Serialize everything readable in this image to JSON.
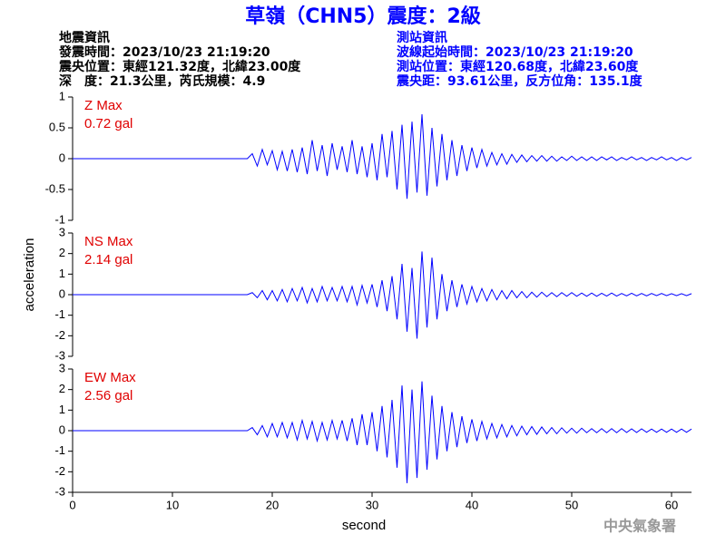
{
  "title": "草嶺（CHN5）震度：2級",
  "quake_info": [
    "地震資訊",
    "發震時間：2023/10/23 21:19:20",
    "震央位置：東經121.32度，北緯23.00度",
    "深　度：21.3公里，芮氏規模：4.9"
  ],
  "station_info": [
    "測站資訊",
    "波線起始時間：2023/10/23 21:19:20",
    "測站位置：東經120.68度，北緯23.60度",
    "震央距：93.61公里，反方位角：135.1度"
  ],
  "ylabel": "acceleration",
  "footer": "中央氣象署",
  "chart_data": [
    {
      "type": "line",
      "title": "Z Max",
      "subtitle": "0.72 gal",
      "x": [
        0,
        17.5,
        18,
        18.5,
        19,
        19.5,
        20,
        20.5,
        21,
        21.5,
        22,
        22.5,
        23,
        23.5,
        24,
        24.5,
        25,
        25.5,
        26,
        26.5,
        27,
        27.5,
        28,
        28.5,
        29,
        29.5,
        30,
        30.5,
        31,
        31.5,
        32,
        32.5,
        33,
        33.5,
        34,
        34.5,
        35,
        35.5,
        36,
        36.5,
        37,
        37.5,
        38,
        38.5,
        39,
        39.5,
        40,
        40.5,
        41,
        41.5,
        42,
        42.5,
        43,
        43.5,
        44,
        44.5,
        45,
        45.5,
        46,
        46.5,
        47,
        47.5,
        48,
        48.5,
        49,
        49.5,
        50,
        50.5,
        51,
        51.5,
        52,
        52.5,
        53,
        53.5,
        54,
        54.5,
        55,
        55.5,
        56,
        56.5,
        57,
        57.5,
        58,
        58.5,
        59,
        59.5,
        60,
        60.5,
        61,
        61.5,
        62
      ],
      "series": [
        {
          "color": "#0000ff",
          "values": [
            0,
            0,
            0.08,
            -0.12,
            0.15,
            -0.1,
            0.13,
            -0.18,
            0.12,
            -0.2,
            0.15,
            -0.22,
            0.18,
            -0.25,
            0.3,
            -0.2,
            0.22,
            -0.28,
            0.25,
            -0.18,
            0.2,
            -0.22,
            0.3,
            -0.25,
            0.2,
            -0.3,
            0.25,
            -0.35,
            0.4,
            -0.3,
            0.45,
            -0.5,
            0.55,
            -0.65,
            0.6,
            -0.55,
            0.72,
            -0.6,
            0.5,
            -0.45,
            0.4,
            -0.35,
            0.3,
            -0.28,
            0.22,
            -0.2,
            0.18,
            -0.15,
            0.15,
            -0.12,
            0.1,
            -0.1,
            0.08,
            -0.09,
            0.07,
            -0.06,
            0.06,
            -0.05,
            0.05,
            -0.04,
            0.05,
            -0.04,
            0.04,
            -0.04,
            0.03,
            -0.03,
            0.04,
            -0.03,
            0.03,
            -0.03,
            0.03,
            -0.03,
            0.03,
            -0.02,
            0.03,
            -0.03,
            0.02,
            -0.02,
            0.03,
            -0.02,
            0.02,
            -0.03,
            0.02,
            -0.02,
            0.03,
            -0.02,
            0.02,
            -0.03,
            0.02,
            -0.02,
            0.02
          ]
        }
      ],
      "xlim": [
        0,
        62
      ],
      "ylim": [
        -1,
        1
      ],
      "yticks": [
        -1,
        -0.5,
        0,
        0.5,
        1
      ]
    },
    {
      "type": "line",
      "title": "NS Max",
      "subtitle": "2.14 gal",
      "x": [
        0,
        17.5,
        18,
        18.5,
        19,
        19.5,
        20,
        20.5,
        21,
        21.5,
        22,
        22.5,
        23,
        23.5,
        24,
        24.5,
        25,
        25.5,
        26,
        26.5,
        27,
        27.5,
        28,
        28.5,
        29,
        29.5,
        30,
        30.5,
        31,
        31.5,
        32,
        32.5,
        33,
        33.5,
        34,
        34.5,
        35,
        35.5,
        36,
        36.5,
        37,
        37.5,
        38,
        38.5,
        39,
        39.5,
        40,
        40.5,
        41,
        41.5,
        42,
        42.5,
        43,
        43.5,
        44,
        44.5,
        45,
        45.5,
        46,
        46.5,
        47,
        47.5,
        48,
        48.5,
        49,
        49.5,
        50,
        50.5,
        51,
        51.5,
        52,
        52.5,
        53,
        53.5,
        54,
        54.5,
        55,
        55.5,
        56,
        56.5,
        57,
        57.5,
        58,
        58.5,
        59,
        59.5,
        60,
        60.5,
        61,
        61.5,
        62
      ],
      "series": [
        {
          "color": "#0000ff",
          "values": [
            0,
            0,
            0.1,
            -0.15,
            0.2,
            -0.25,
            0.2,
            -0.3,
            0.25,
            -0.35,
            0.3,
            -0.3,
            0.35,
            -0.4,
            0.3,
            -0.35,
            0.4,
            -0.3,
            0.35,
            -0.3,
            0.4,
            -0.35,
            0.4,
            -0.5,
            0.45,
            -0.4,
            0.5,
            -0.6,
            0.7,
            -0.8,
            0.9,
            -1.2,
            1.5,
            -1.8,
            1.3,
            -2.14,
            2.1,
            -1.6,
            1.8,
            -1.2,
            1.0,
            -0.8,
            0.7,
            -0.6,
            0.5,
            -0.45,
            0.4,
            -0.35,
            0.3,
            -0.3,
            0.25,
            -0.25,
            0.2,
            -0.2,
            0.2,
            -0.15,
            0.15,
            -0.15,
            0.12,
            -0.12,
            0.12,
            -0.1,
            0.1,
            -0.1,
            0.1,
            -0.08,
            0.1,
            -0.08,
            0.08,
            -0.08,
            0.08,
            -0.08,
            0.07,
            -0.07,
            0.08,
            -0.07,
            0.06,
            -0.06,
            0.07,
            -0.06,
            0.06,
            -0.06,
            0.06,
            -0.05,
            0.06,
            -0.05,
            0.05,
            -0.05,
            0.05,
            -0.05,
            0.05
          ]
        }
      ],
      "xlim": [
        0,
        62
      ],
      "ylim": [
        -3,
        3
      ],
      "yticks": [
        -3,
        -2,
        -1,
        0,
        1,
        2,
        3
      ]
    },
    {
      "type": "line",
      "title": "EW Max",
      "subtitle": "2.56 gal",
      "xlabel": "second",
      "x": [
        0,
        17.5,
        18,
        18.5,
        19,
        19.5,
        20,
        20.5,
        21,
        21.5,
        22,
        22.5,
        23,
        23.5,
        24,
        24.5,
        25,
        25.5,
        26,
        26.5,
        27,
        27.5,
        28,
        28.5,
        29,
        29.5,
        30,
        30.5,
        31,
        31.5,
        32,
        32.5,
        33,
        33.5,
        34,
        34.5,
        35,
        35.5,
        36,
        36.5,
        37,
        37.5,
        38,
        38.5,
        39,
        39.5,
        40,
        40.5,
        41,
        41.5,
        42,
        42.5,
        43,
        43.5,
        44,
        44.5,
        45,
        45.5,
        46,
        46.5,
        47,
        47.5,
        48,
        48.5,
        49,
        49.5,
        50,
        50.5,
        51,
        51.5,
        52,
        52.5,
        53,
        53.5,
        54,
        54.5,
        55,
        55.5,
        56,
        56.5,
        57,
        57.5,
        58,
        58.5,
        59,
        59.5,
        60,
        60.5,
        61,
        61.5,
        62
      ],
      "series": [
        {
          "color": "#0000ff",
          "values": [
            0,
            0,
            0.15,
            -0.2,
            0.25,
            -0.3,
            0.35,
            -0.3,
            0.4,
            -0.35,
            0.4,
            -0.45,
            0.5,
            -0.4,
            0.45,
            -0.5,
            0.4,
            -0.45,
            0.5,
            -0.4,
            0.5,
            -0.5,
            0.6,
            -0.7,
            0.8,
            -0.7,
            0.9,
            -1.0,
            1.2,
            -1.3,
            1.5,
            -1.8,
            2.2,
            -2.56,
            2.0,
            -2.3,
            2.4,
            -1.9,
            1.7,
            -1.4,
            1.2,
            -1.0,
            0.9,
            -0.8,
            0.7,
            -0.6,
            0.55,
            -0.5,
            0.45,
            -0.4,
            0.35,
            -0.35,
            0.3,
            -0.3,
            0.25,
            -0.25,
            0.22,
            -0.2,
            0.2,
            -0.18,
            0.18,
            -0.15,
            0.15,
            -0.15,
            0.14,
            -0.12,
            0.12,
            -0.12,
            0.12,
            -0.1,
            0.1,
            -0.1,
            0.1,
            -0.1,
            0.1,
            -0.1,
            0.1,
            -0.09,
            0.09,
            -0.09,
            0.09,
            -0.08,
            0.08,
            -0.08,
            0.08,
            -0.08,
            0.08,
            -0.08,
            0.08,
            -0.08,
            0.08
          ]
        }
      ],
      "xlim": [
        0,
        62
      ],
      "ylim": [
        -3,
        3
      ],
      "yticks": [
        -3,
        -2,
        -1,
        0,
        1,
        2,
        3
      ],
      "xticks": [
        0,
        10,
        20,
        30,
        40,
        50,
        60
      ]
    }
  ]
}
